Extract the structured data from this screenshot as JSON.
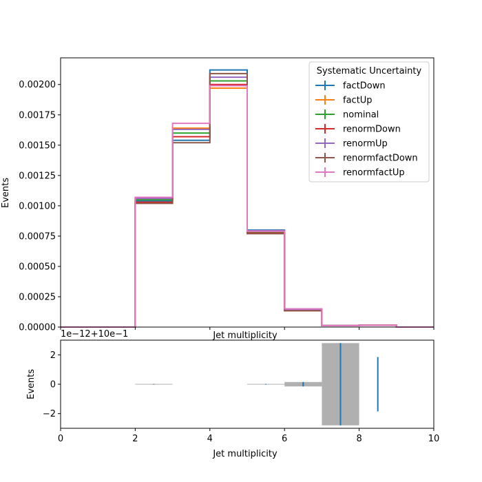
{
  "chart_data": [
    {
      "type": "step",
      "xlabel": "Jet multiplicity",
      "ylabel": "Events",
      "xlim": [
        0,
        10
      ],
      "ylim": [
        0,
        0.00222
      ],
      "yticks": [
        0,
        0.00025,
        0.0005,
        0.00075,
        0.001,
        0.00125,
        0.0015,
        0.00175,
        0.002
      ],
      "ytick_labels": [
        "0.00000",
        "0.00025",
        "0.00050",
        "0.00075",
        "0.00100",
        "0.00125",
        "0.00150",
        "0.00175",
        "0.00200"
      ],
      "bin_edges": [
        0,
        1,
        2,
        3,
        4,
        5,
        6,
        7,
        8,
        9,
        10
      ],
      "legend": {
        "title": "Systematic Uncertainty",
        "placement": "top-right"
      },
      "series": [
        {
          "name": "factDown",
          "color": "#1f77b4",
          "values": [
            0,
            0,
            0.00104,
            0.00154,
            0.00212,
            0.0008,
            0.00015,
            1.2e-05,
            1.5e-05,
            0
          ]
        },
        {
          "name": "factUp",
          "color": "#ff7f0e",
          "values": [
            0,
            0,
            0.00106,
            0.00164,
            0.00197,
            0.00079,
            0.000145,
            1.2e-05,
            1.5e-05,
            0
          ]
        },
        {
          "name": "nominal",
          "color": "#2ca02c",
          "values": [
            0,
            0,
            0.00105,
            0.0016,
            0.00203,
            0.000785,
            0.00014,
            1.2e-05,
            1.5e-05,
            0
          ]
        },
        {
          "name": "renormDown",
          "color": "#d62728",
          "values": [
            0,
            0,
            0.00103,
            0.00157,
            0.002,
            0.000775,
            0.000135,
            1.2e-05,
            1.5e-05,
            0
          ]
        },
        {
          "name": "renormUp",
          "color": "#9467bd",
          "values": [
            0,
            0,
            0.00106,
            0.00163,
            0.00206,
            0.000795,
            0.000145,
            1.2e-05,
            1.5e-05,
            0
          ]
        },
        {
          "name": "renormfactDown",
          "color": "#8c564b",
          "values": [
            0,
            0,
            0.00102,
            0.00152,
            0.00209,
            0.00077,
            0.000135,
            1.2e-05,
            1.5e-05,
            0
          ]
        },
        {
          "name": "renormfactUp",
          "color": "#e377c2",
          "values": [
            0,
            0,
            0.00107,
            0.00168,
            0.00199,
            0.00079,
            0.00015,
            1.2e-05,
            1.5e-05,
            0
          ]
        }
      ]
    },
    {
      "type": "ratio",
      "xlabel": "Jet multiplicity",
      "ylabel": "Events",
      "offset_text": "1e−12+10e−1",
      "xlim": [
        0,
        10
      ],
      "ylim": [
        -3,
        3
      ],
      "yticks": [
        -2,
        0,
        2
      ],
      "ytick_labels": [
        "−2",
        "0",
        "2"
      ],
      "xticks": [
        0,
        2,
        4,
        6,
        8,
        10
      ],
      "xtick_labels": [
        "0",
        "2",
        "4",
        "6",
        "8",
        "10"
      ],
      "band_color": "#b0b0b0",
      "point_color": "#1f77b4",
      "bands": [
        {
          "x0": 2,
          "x1": 3,
          "lo": -0.02,
          "hi": 0.02
        },
        {
          "x0": 5,
          "x1": 6,
          "lo": -0.02,
          "hi": 0.02
        },
        {
          "x0": 6,
          "x1": 7,
          "lo": -0.15,
          "hi": 0.15
        },
        {
          "x0": 7,
          "x1": 8,
          "lo": -2.8,
          "hi": 2.8
        }
      ],
      "points": [
        {
          "x": 2.5,
          "err": 0.02
        },
        {
          "x": 5.5,
          "err": 0.02
        },
        {
          "x": 6.5,
          "err": 0.15
        },
        {
          "x": 7.5,
          "err": 2.8
        },
        {
          "x": 8.5,
          "err": 1.85
        }
      ]
    }
  ]
}
